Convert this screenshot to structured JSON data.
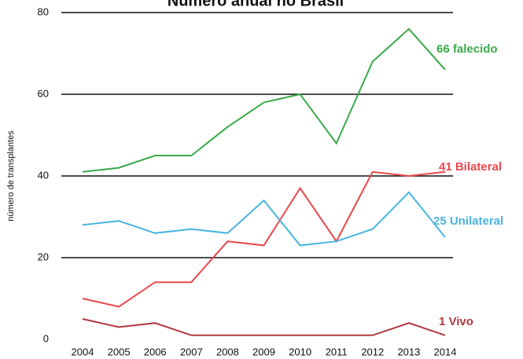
{
  "chart_data": {
    "type": "line",
    "title": "Número anual no Brasil",
    "y_label": "número de transplantes",
    "x": [
      "2004",
      "2005",
      "2006",
      "2007",
      "2008",
      "2009",
      "2010",
      "2011",
      "2012",
      "2013",
      "2014"
    ],
    "ylim": [
      0,
      80
    ],
    "yticks": [
      0,
      20,
      40,
      60,
      80
    ],
    "grid": true,
    "series": [
      {
        "name": "66 falecido",
        "color": "#3aaa4a",
        "values": [
          41,
          42,
          45,
          45,
          52,
          58,
          60,
          48,
          68,
          76,
          66
        ]
      },
      {
        "name": "41 Bilateral",
        "color": "#e8474b",
        "values": [
          10,
          8,
          14,
          14,
          24,
          23,
          37,
          24,
          41,
          40,
          41
        ]
      },
      {
        "name": "25 Unilateral",
        "color": "#4ab4e0",
        "values": [
          28,
          29,
          26,
          27,
          26,
          34,
          23,
          24,
          27,
          36,
          25
        ]
      },
      {
        "name": "1 Vivo",
        "color": "#b0393e",
        "values": [
          5,
          3,
          4,
          1,
          1,
          1,
          1,
          1,
          1,
          4,
          1
        ]
      }
    ]
  }
}
